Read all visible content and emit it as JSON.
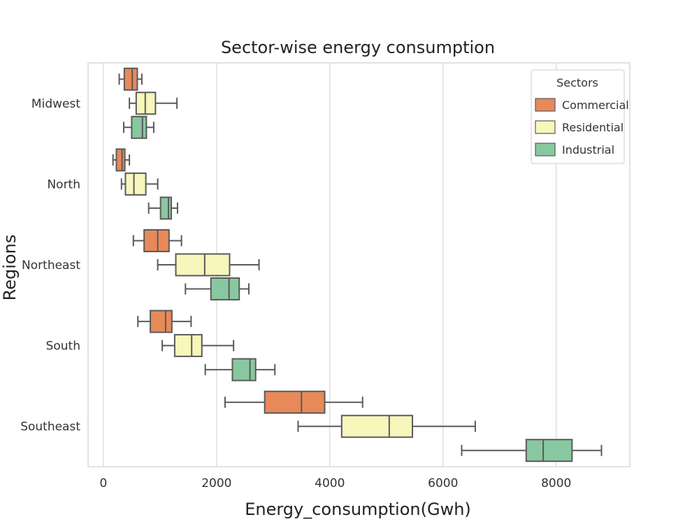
{
  "chart_data": {
    "type": "boxplot",
    "orientation": "horizontal",
    "title": "Sector-wise energy consumption",
    "xlabel": "Energy_consumption(Gwh)",
    "ylabel": "Regions",
    "xlim": [
      -270,
      9300
    ],
    "xticks": [
      0,
      2000,
      4000,
      6000,
      8000
    ],
    "grid": true,
    "categories": [
      "Midwest",
      "North",
      "Northeast",
      "South",
      "Southeast"
    ],
    "legend": {
      "title": "Sectors",
      "position": "top-right"
    },
    "series": [
      {
        "name": "Commercial",
        "color": "#e8895a",
        "boxes": [
          {
            "whisker_low": 280,
            "q1": 370,
            "median": 510,
            "q3": 600,
            "whisker_high": 680
          },
          {
            "whisker_low": 170,
            "q1": 230,
            "median": 330,
            "q3": 380,
            "whisker_high": 460
          },
          {
            "whisker_low": 530,
            "q1": 720,
            "median": 960,
            "q3": 1160,
            "whisker_high": 1380
          },
          {
            "whisker_low": 610,
            "q1": 830,
            "median": 1100,
            "q3": 1210,
            "whisker_high": 1550
          },
          {
            "whisker_low": 2150,
            "q1": 2850,
            "median": 3500,
            "q3": 3910,
            "whisker_high": 4580
          }
        ]
      },
      {
        "name": "Residential",
        "color": "#f7f6bb",
        "boxes": [
          {
            "whisker_low": 460,
            "q1": 580,
            "median": 740,
            "q3": 920,
            "whisker_high": 1300
          },
          {
            "whisker_low": 320,
            "q1": 390,
            "median": 540,
            "q3": 750,
            "whisker_high": 960
          },
          {
            "whisker_low": 960,
            "q1": 1280,
            "median": 1790,
            "q3": 2230,
            "whisker_high": 2750
          },
          {
            "whisker_low": 1040,
            "q1": 1260,
            "median": 1560,
            "q3": 1740,
            "whisker_high": 2300
          },
          {
            "whisker_low": 3440,
            "q1": 4210,
            "median": 5050,
            "q3": 5460,
            "whisker_high": 6570
          }
        ]
      },
      {
        "name": "Industrial",
        "color": "#88c8a0",
        "boxes": [
          {
            "whisker_low": 360,
            "q1": 500,
            "median": 690,
            "q3": 760,
            "whisker_high": 890
          },
          {
            "whisker_low": 800,
            "q1": 1010,
            "median": 1150,
            "q3": 1200,
            "whisker_high": 1310
          },
          {
            "whisker_low": 1450,
            "q1": 1900,
            "median": 2220,
            "q3": 2400,
            "whisker_high": 2570
          },
          {
            "whisker_low": 1800,
            "q1": 2280,
            "median": 2590,
            "q3": 2690,
            "whisker_high": 3030
          },
          {
            "whisker_low": 6330,
            "q1": 7470,
            "median": 7770,
            "q3": 8280,
            "whisker_high": 8800
          }
        ]
      }
    ]
  }
}
